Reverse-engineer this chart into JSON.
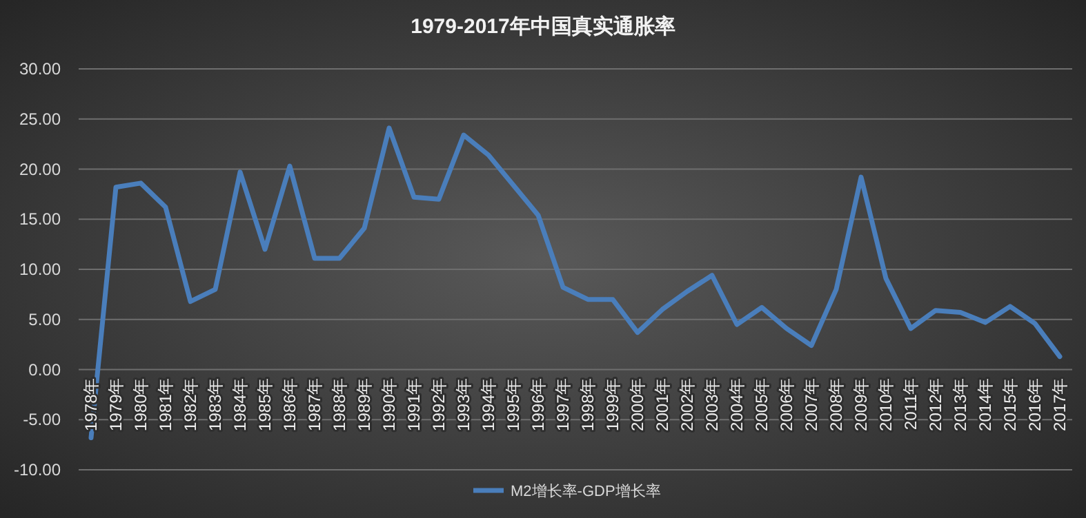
{
  "chart_data": {
    "type": "line",
    "title": "1979-2017年中国真实通胀率",
    "categories": [
      "1978年",
      "1979年",
      "1980年",
      "1981年",
      "1982年",
      "1983年",
      "1984年",
      "1985年",
      "1986年",
      "1987年",
      "1988年",
      "1989年",
      "1990年",
      "1991年",
      "1992年",
      "1993年",
      "1994年",
      "1995年",
      "1996年",
      "1997年",
      "1998年",
      "1999年",
      "2000年",
      "2001年",
      "2002年",
      "2003年",
      "2004年",
      "2005年",
      "2006年",
      "2007年",
      "2008年",
      "2009年",
      "2010年",
      "2011年",
      "2012年",
      "2013年",
      "2014年",
      "2015年",
      "2016年",
      "2017年"
    ],
    "series": [
      {
        "name": "M2增长率-GDP增长率",
        "color": "#4a7ebb",
        "values": [
          -6.8,
          18.2,
          18.6,
          16.2,
          6.8,
          8.0,
          19.7,
          12.0,
          20.3,
          11.1,
          11.1,
          14.1,
          24.1,
          17.2,
          17.0,
          23.4,
          21.4,
          18.4,
          15.4,
          8.2,
          7.0,
          7.0,
          3.7,
          6.0,
          7.8,
          9.4,
          4.5,
          6.2,
          4.1,
          2.4,
          8.0,
          19.2,
          9.1,
          4.1,
          5.9,
          5.7,
          4.7,
          6.3,
          4.6,
          1.3
        ]
      }
    ],
    "ylim": [
      -10,
      30
    ],
    "yticks": [
      {
        "value": -10,
        "label": "-10.00"
      },
      {
        "value": -5,
        "label": "-5.00"
      },
      {
        "value": 0,
        "label": "0.00"
      },
      {
        "value": 5,
        "label": "5.00"
      },
      {
        "value": 10,
        "label": "10.00"
      },
      {
        "value": 15,
        "label": "15.00"
      },
      {
        "value": 20,
        "label": "20.00"
      },
      {
        "value": 25,
        "label": "25.00"
      },
      {
        "value": 30,
        "label": "30.00"
      }
    ],
    "grid": "y",
    "legend": "bottom"
  }
}
